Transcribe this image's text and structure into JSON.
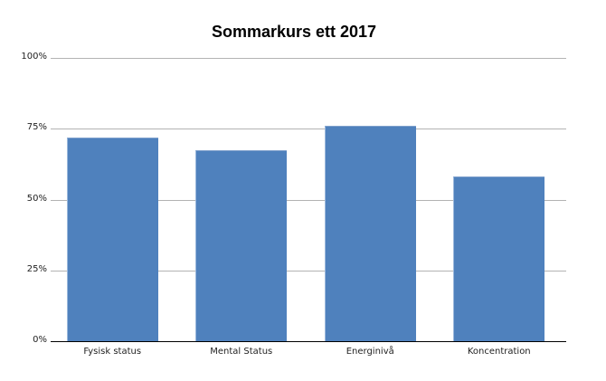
{
  "chart_data": {
    "type": "bar",
    "title": "Sommarkurs ett 2017",
    "xlabel": "",
    "ylabel": "",
    "categories": [
      "Fysisk status",
      "Mental Status",
      "Energinivå",
      "Koncentration"
    ],
    "values": [
      72,
      67.5,
      76,
      58
    ],
    "value_unit": "%",
    "ylim": [
      0,
      100
    ],
    "yticks": [
      "0%",
      "25%",
      "50%",
      "75%",
      "100%"
    ],
    "grid": true,
    "legend": null,
    "bar_color": "#4f81bd"
  }
}
